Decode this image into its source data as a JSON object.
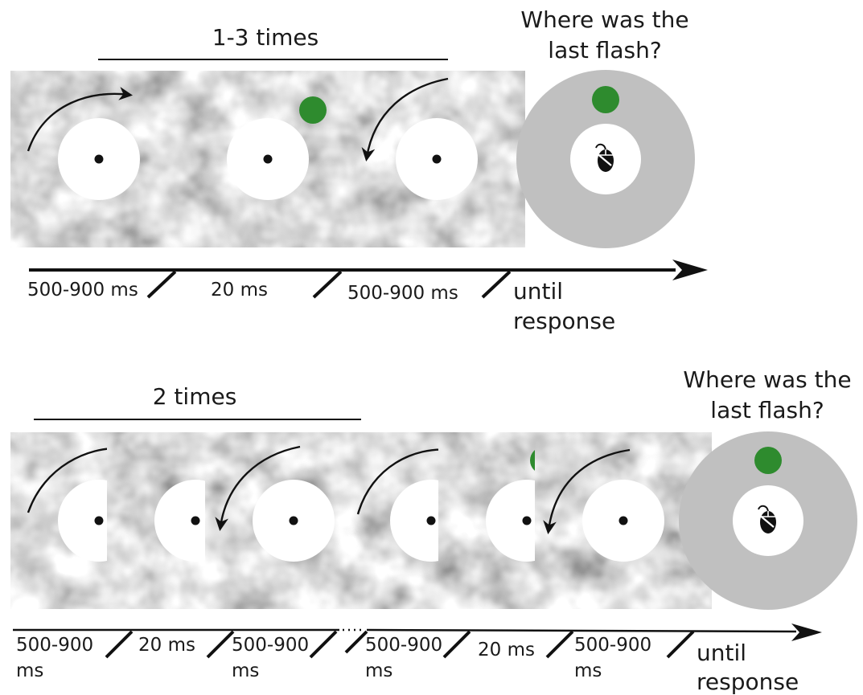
{
  "panel_top": {
    "repeat_label": "1-3 times",
    "question_line1": "Where was the",
    "question_line2": "last flash?",
    "durations": [
      "500-900 ms",
      "20 ms",
      "500-900 ms"
    ],
    "final_line1": "until",
    "final_line2": "response"
  },
  "panel_bottom": {
    "repeat_label": "2 times",
    "question_line1": "Where was the",
    "question_line2": "last flash?",
    "durations": [
      {
        "line1": "500-900",
        "line2": "ms"
      },
      {
        "line1": "20 ms",
        "line2": ""
      },
      {
        "line1": "500-900",
        "line2": "ms"
      },
      {
        "line1": "500-900",
        "line2": "ms"
      },
      {
        "line1": "20 ms",
        "line2": ""
      },
      {
        "line1": "500-900",
        "line2": "ms"
      }
    ],
    "final_line1": "until",
    "final_line2": "response"
  },
  "colors": {
    "flash": "#2e8b2e",
    "response_disc": "#c0c0c0",
    "texture_base": "#a8a8a8",
    "ink": "#111111"
  },
  "icons": {
    "rotation": "curved-arrow-icon",
    "cursor": "mouse-icon",
    "fixation": "fixation-dot-icon"
  }
}
